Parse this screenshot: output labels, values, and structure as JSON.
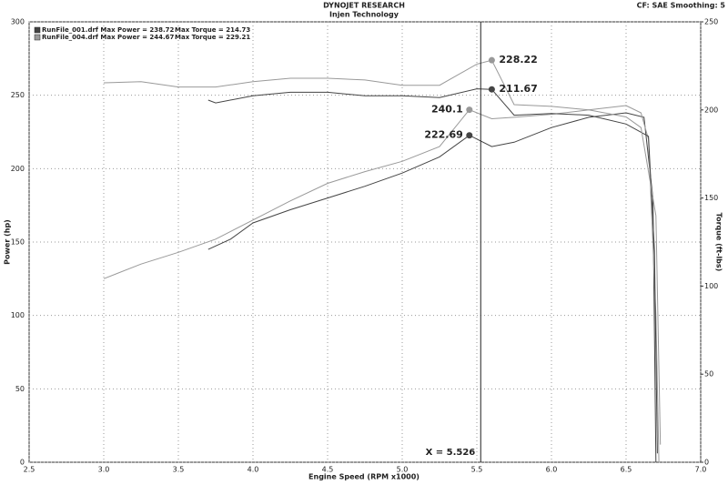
{
  "chart_data": {
    "type": "line",
    "title": "DYNOJET RESEARCH",
    "subtitle": "Injen Technology",
    "corner_note": "CF: SAE  Smoothing: 5",
    "x_label": "Engine Speed (RPM x1000)",
    "y_label": "Power (hp)",
    "y2_label": "Torque (ft-lbs)",
    "xlim": [
      2.5,
      7.0
    ],
    "xticks": [
      {
        "value": 2.5,
        "label": "2.5"
      },
      {
        "value": 3.0,
        "label": "3.0"
      },
      {
        "value": 3.5,
        "label": "3.5"
      },
      {
        "value": 4.0,
        "label": "4.0"
      },
      {
        "value": 4.5,
        "label": "4.5"
      },
      {
        "value": 5.0,
        "label": "5.0"
      },
      {
        "value": 5.5,
        "label": "5.5"
      },
      {
        "value": 6.0,
        "label": "6.0"
      },
      {
        "value": 6.5,
        "label": "6.5"
      },
      {
        "value": 7.0,
        "label": "7.0"
      }
    ],
    "ylim": [
      0,
      300
    ],
    "yticks": [
      0,
      50,
      100,
      150,
      200,
      250,
      300
    ],
    "y2lim": [
      0,
      250
    ],
    "y2ticks": [
      0,
      50,
      100,
      150,
      200,
      250
    ],
    "grid": true,
    "legend": [
      {
        "color": "#444444",
        "power": "RunFile_001.drf Max Power = 238.72",
        "torque": "Max Torque = 214.73"
      },
      {
        "color": "#999999",
        "power": "RunFile_004.drf Max Power = 244.67",
        "torque": "Max Torque = 229.21"
      }
    ],
    "series": [
      {
        "color": "#444444",
        "axis": "y",
        "x": [
          3.7,
          3.85,
          4.0,
          4.25,
          4.5,
          4.75,
          5.0,
          5.25,
          5.45,
          5.6,
          5.75,
          6.0,
          6.25,
          6.5,
          6.62,
          6.68,
          6.7
        ],
        "values": [
          145,
          152,
          163,
          172,
          180,
          188,
          197,
          208,
          222.69,
          215,
          218,
          228,
          235,
          238,
          235,
          180,
          0
        ]
      },
      {
        "color": "#999999",
        "axis": "y",
        "x": [
          3.0,
          3.25,
          3.5,
          3.75,
          4.0,
          4.25,
          4.5,
          4.75,
          5.0,
          5.25,
          5.45,
          5.6,
          5.75,
          6.0,
          6.25,
          6.5,
          6.6,
          6.65,
          6.7,
          6.72
        ],
        "values": [
          125,
          135,
          143,
          152,
          165,
          178,
          190,
          198,
          205,
          215,
          240.1,
          234,
          235,
          237,
          240,
          243,
          238,
          220,
          100,
          0
        ]
      },
      {
        "color": "#444444",
        "axis": "y2",
        "x": [
          3.7,
          3.75,
          4.0,
          4.25,
          4.5,
          4.75,
          5.0,
          5.25,
          5.5,
          5.6,
          5.75,
          6.0,
          6.25,
          6.5,
          6.65,
          6.69,
          6.71
        ],
        "values": [
          205.6,
          204,
          208,
          210,
          210,
          208,
          208,
          207,
          212,
          211.67,
          197,
          198,
          197,
          192,
          185,
          120,
          5
        ]
      },
      {
        "color": "#999999",
        "axis": "y2",
        "x": [
          3.0,
          3.25,
          3.5,
          3.75,
          4.0,
          4.25,
          4.5,
          4.75,
          5.0,
          5.25,
          5.5,
          5.6,
          5.75,
          6.0,
          6.25,
          6.5,
          6.6,
          6.7,
          6.73
        ],
        "values": [
          215.4,
          216,
          213,
          213,
          216,
          218,
          218,
          217,
          214,
          214,
          226,
          228.22,
          203,
          202,
          200,
          196,
          190,
          140,
          10
        ]
      }
    ],
    "markers": [
      {
        "x": 5.6,
        "value": 228.22,
        "axis": "y2",
        "color": "#999999"
      },
      {
        "x": 5.6,
        "value": 211.67,
        "axis": "y2",
        "color": "#444444"
      },
      {
        "x": 5.45,
        "value": 240.1,
        "axis": "y",
        "color": "#999999"
      },
      {
        "x": 5.45,
        "value": 222.69,
        "axis": "y",
        "color": "#444444"
      }
    ],
    "cursor": {
      "value": 5.526,
      "label": "X = 5.526"
    }
  }
}
